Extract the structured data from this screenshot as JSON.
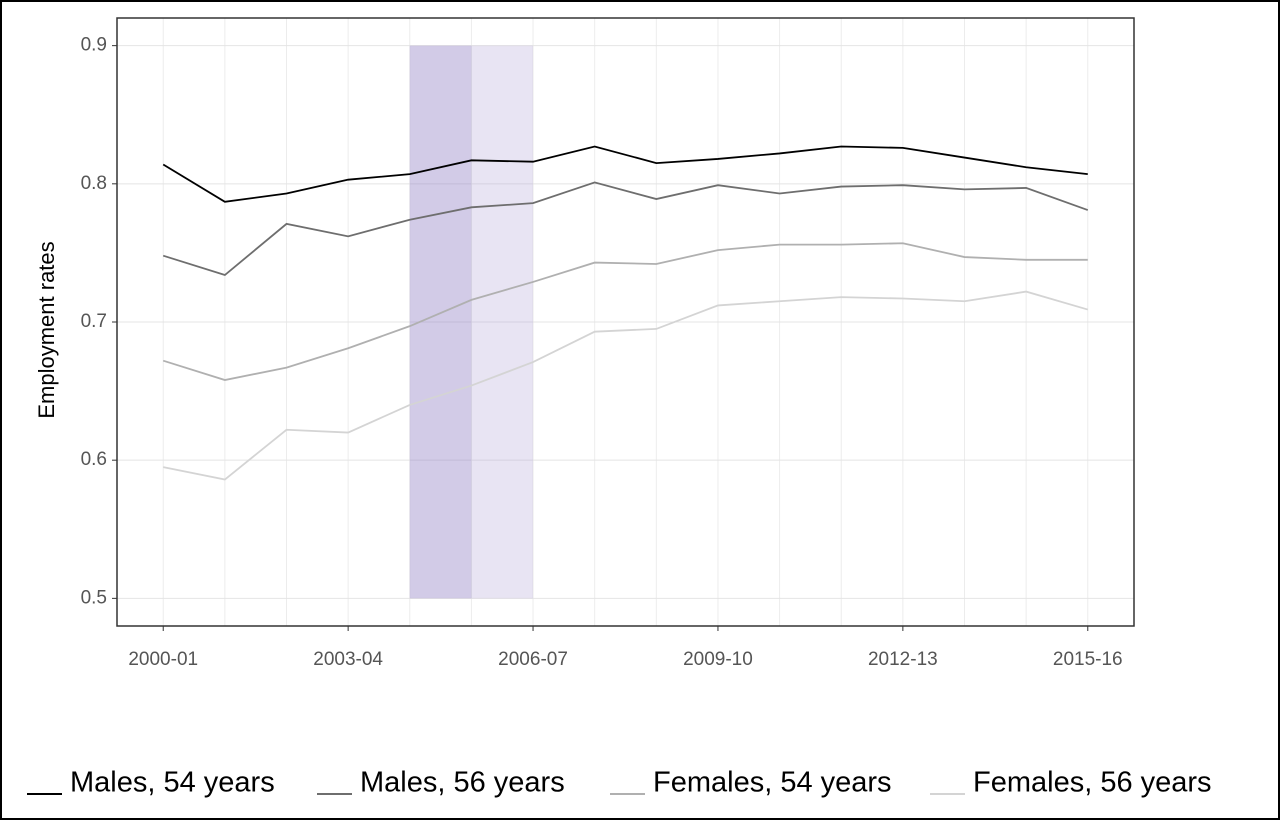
{
  "chart_data": {
    "type": "line",
    "y_label": "Employment rates",
    "categories": [
      "2000-01",
      null,
      null,
      "2003-04",
      null,
      null,
      "2006-07",
      null,
      null,
      "2009-10",
      null,
      null,
      "2012-13",
      null,
      null,
      "2015-16"
    ],
    "series": [
      {
        "name": "Males, 54 years",
        "color": "#000000",
        "values": [
          0.814,
          0.787,
          0.793,
          0.803,
          0.807,
          0.817,
          0.816,
          0.827,
          0.815,
          0.818,
          0.822,
          0.827,
          0.826,
          0.819,
          0.812,
          0.807
        ]
      },
      {
        "name": "Males, 56 years",
        "color": "#6e6e6e",
        "values": [
          0.748,
          0.734,
          0.771,
          0.762,
          0.774,
          0.783,
          0.786,
          0.801,
          0.789,
          0.799,
          0.793,
          0.798,
          0.799,
          0.796,
          0.797,
          0.781
        ]
      },
      {
        "name": "Females, 54 years",
        "color": "#b0b0b0",
        "values": [
          0.672,
          0.658,
          0.667,
          0.681,
          0.697,
          0.716,
          0.729,
          0.743,
          0.742,
          0.752,
          0.756,
          0.756,
          0.757,
          0.747,
          0.745,
          0.745
        ]
      },
      {
        "name": "Females, 56 years",
        "color": "#d4d4d4",
        "values": [
          0.595,
          0.586,
          0.622,
          0.62,
          0.64,
          0.654,
          0.671,
          0.693,
          0.695,
          0.712,
          0.715,
          0.718,
          0.717,
          0.715,
          0.722,
          0.709
        ]
      }
    ],
    "highlight_bands": [
      {
        "start": 4,
        "end": 5,
        "color": "#8e7cc3",
        "opacity": 0.4
      },
      {
        "start": 5,
        "end": 6,
        "color": "#b4a7d6",
        "opacity": 0.3
      }
    ],
    "ylim": [
      0.48,
      0.92
    ],
    "yticks": [
      0.5,
      0.6,
      0.7,
      0.8,
      0.9
    ],
    "band_top": 0.9,
    "band_bottom": 0.5,
    "grid": true,
    "legend": "bottom"
  }
}
